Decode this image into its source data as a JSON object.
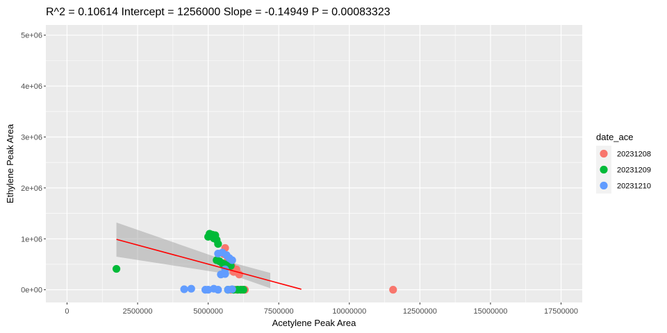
{
  "chart_data": {
    "type": "scatter",
    "title": "R^2 =  0.10614 Intercept = 1256000  Slope = -0.14949  P = 0.00083323",
    "xlabel": "Acetylene Peak Area",
    "ylabel": "Ethylene Peak Area",
    "xlim": [
      -750000,
      18250000
    ],
    "ylim": [
      -250000,
      5200000
    ],
    "x_ticks": [
      0,
      2500000,
      5000000,
      7500000,
      10000000,
      12500000,
      15000000,
      17500000
    ],
    "x_tick_labels": [
      "0",
      "2500000",
      "5000000",
      "7500000",
      "10000000",
      "12500000",
      "15000000",
      "17500000"
    ],
    "y_ticks": [
      0,
      1000000,
      2000000,
      3000000,
      4000000,
      5000000
    ],
    "y_tick_labels": [
      "0e+00",
      "1e+06",
      "2e+06",
      "3e+06",
      "4e+06",
      "5e+06"
    ],
    "grid": true,
    "legend": {
      "title": "date_ace",
      "placement": "right",
      "entries": [
        {
          "name": "20231208",
          "color": "#F8766D"
        },
        {
          "name": "20231209",
          "color": "#00BA38"
        },
        {
          "name": "20231210",
          "color": "#619CFF"
        }
      ]
    },
    "series": [
      {
        "name": "20231208",
        "color": "#F8766D",
        "points": [
          [
            11550000,
            0
          ],
          [
            5600000,
            820000
          ],
          [
            5550000,
            700000
          ],
          [
            5700000,
            600000
          ],
          [
            5850000,
            450000
          ],
          [
            6000000,
            400000
          ],
          [
            5900000,
            350000
          ],
          [
            6100000,
            300000
          ],
          [
            6000000,
            0
          ],
          [
            6200000,
            0
          ],
          [
            6300000,
            0
          ],
          [
            5800000,
            0
          ]
        ]
      },
      {
        "name": "20231209",
        "color": "#00BA38",
        "points": [
          [
            1750000,
            410000
          ],
          [
            5050000,
            1100000
          ],
          [
            5150000,
            1080000
          ],
          [
            5250000,
            1070000
          ],
          [
            5000000,
            1040000
          ],
          [
            5200000,
            1010000
          ],
          [
            5300000,
            980000
          ],
          [
            5350000,
            900000
          ],
          [
            5300000,
            580000
          ],
          [
            5400000,
            560000
          ],
          [
            5500000,
            520000
          ],
          [
            5600000,
            500000
          ],
          [
            5800000,
            470000
          ],
          [
            5700000,
            0
          ],
          [
            6050000,
            0
          ],
          [
            6150000,
            0
          ],
          [
            6250000,
            0
          ],
          [
            5900000,
            0
          ]
        ]
      },
      {
        "name": "20231210",
        "color": "#619CFF",
        "points": [
          [
            5350000,
            710000
          ],
          [
            5500000,
            730000
          ],
          [
            5650000,
            680000
          ],
          [
            5750000,
            620000
          ],
          [
            5850000,
            580000
          ],
          [
            5600000,
            400000
          ],
          [
            5450000,
            300000
          ],
          [
            5600000,
            310000
          ],
          [
            4150000,
            10000
          ],
          [
            4400000,
            20000
          ],
          [
            4900000,
            0
          ],
          [
            5000000,
            0
          ],
          [
            5200000,
            20000
          ],
          [
            5350000,
            0
          ],
          [
            5700000,
            0
          ],
          [
            5850000,
            10000
          ]
        ]
      }
    ],
    "fit": {
      "color": "#FF0000",
      "band_color": "#999999",
      "line": [
        [
          1750000,
          990000
        ],
        [
          8300000,
          10000
        ]
      ],
      "band_upper": [
        [
          1750000,
          1320000
        ],
        [
          5800000,
          540000
        ],
        [
          7200000,
          330000
        ]
      ],
      "band_lower": [
        [
          1750000,
          650000
        ],
        [
          5800000,
          300000
        ],
        [
          7200000,
          30000
        ]
      ]
    }
  }
}
